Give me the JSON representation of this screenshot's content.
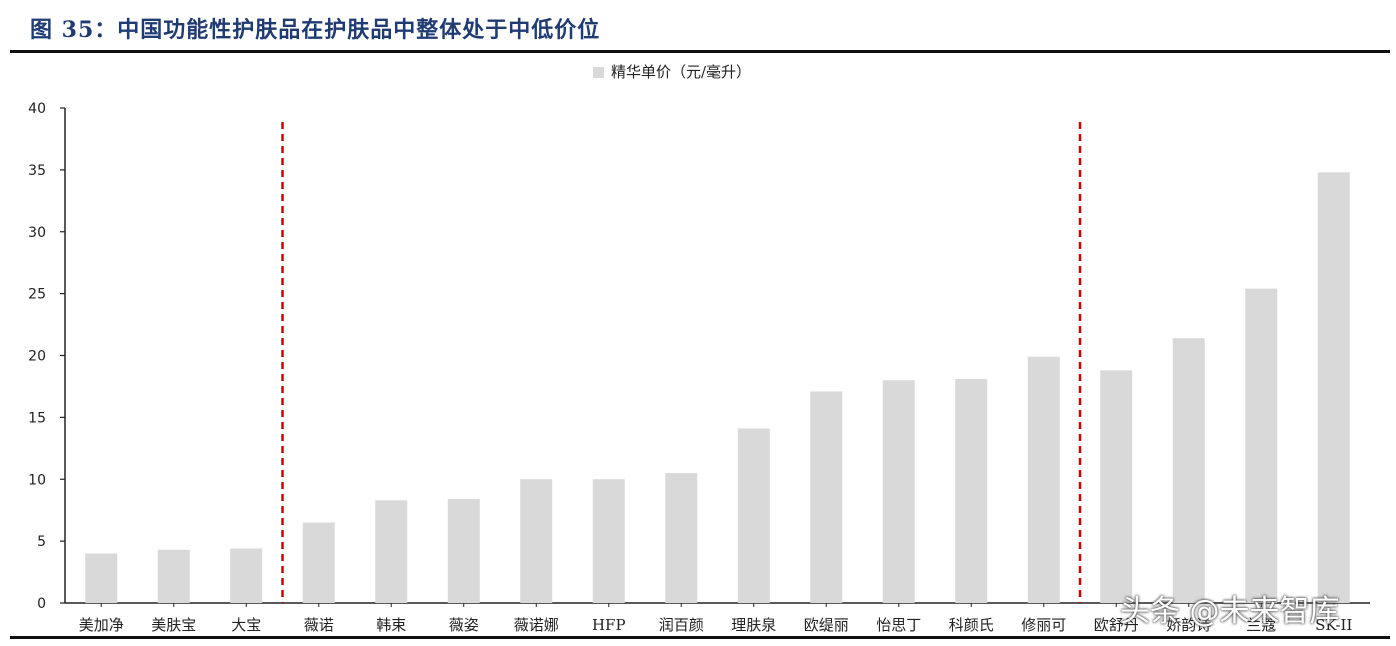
{
  "figure_title": "图 35：中国功能性护肤品在护肤品中整体处于中低价位",
  "watermark": "头条 @未来智库",
  "chart_data": {
    "type": "bar",
    "legend_position": "top-center",
    "series": [
      {
        "name": "精华单价（元/毫升）",
        "values": [
          4.0,
          4.3,
          4.4,
          6.5,
          8.3,
          8.4,
          10.0,
          10.0,
          10.5,
          14.1,
          17.1,
          18.0,
          18.1,
          19.9,
          18.8,
          21.4,
          25.4,
          34.8
        ]
      }
    ],
    "categories": [
      "美加净",
      "美肤宝",
      "大宝",
      "薇诺",
      "韩束",
      "薇姿",
      "薇诺娜",
      "HFP",
      "润百颜",
      "理肤泉",
      "欧缇丽",
      "怡思丁",
      "科颜氏",
      "修丽可",
      "欧舒丹",
      "娇韵诗",
      "兰蔻",
      "SK-II"
    ],
    "ylim": [
      0,
      40
    ],
    "yticks": [
      0,
      5,
      10,
      15,
      20,
      25,
      30,
      35,
      40
    ],
    "grid": false,
    "bar_color": "#d9d9d9",
    "divider_color": "#cc0000",
    "dividers_after_category_index": [
      2,
      13
    ]
  }
}
